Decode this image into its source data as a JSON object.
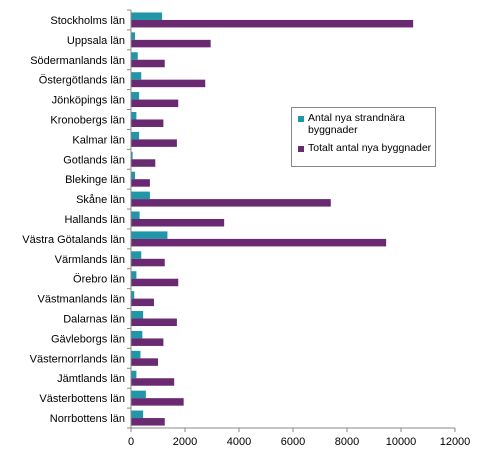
{
  "chart_data": {
    "type": "bar",
    "orientation": "horizontal",
    "categories": [
      "Stockholms län",
      "Uppsala län",
      "Södermanlands län",
      "Östergötlands län",
      "Jönköpings län",
      "Kronobergs län",
      "Kalmar län",
      "Gotlands län",
      "Blekinge län",
      "Skåne län",
      "Hallands län",
      "Västra Götalands län",
      "Värmlands län",
      "Örebro län",
      "Västmanlands län",
      "Dalarnas län",
      "Gävleborgs län",
      "Västernorrlands län",
      "Jämtlands län",
      "Västerbottens län",
      "Norrbottens län"
    ],
    "series": [
      {
        "name": "Antal nya strandnära byggnader",
        "color": "#2196a8",
        "values": [
          1150,
          150,
          250,
          380,
          300,
          200,
          300,
          60,
          150,
          700,
          320,
          1350,
          380,
          200,
          120,
          450,
          420,
          350,
          200,
          550,
          450
        ]
      },
      {
        "name": "Totalt antal nya byggnader",
        "color": "#6a2a72",
        "values": [
          10450,
          2950,
          1250,
          2750,
          1750,
          1200,
          1700,
          900,
          700,
          7400,
          3450,
          9450,
          1250,
          1750,
          850,
          1700,
          1200,
          1000,
          1600,
          1950,
          1250
        ]
      }
    ],
    "xlim": [
      0,
      12000
    ],
    "xticks": [
      "0",
      "2000",
      "4000",
      "6000",
      "8000",
      "10000",
      "12000"
    ],
    "grid": false,
    "legend_position": "right"
  }
}
